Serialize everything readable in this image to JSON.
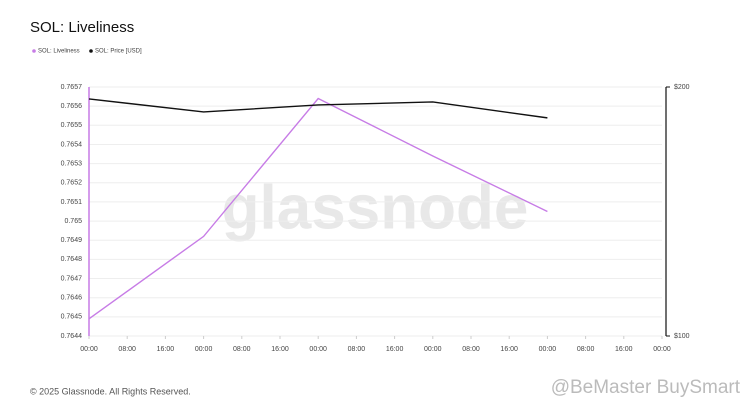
{
  "chart_data": {
    "type": "line",
    "title": "SOL: Liveliness",
    "watermark": "glassnode",
    "footer": "© 2025 Glassnode. All Rights Reserved.",
    "overlay_watermark": "@BeMaster BuySmart",
    "x": [
      0,
      24,
      48,
      72,
      96
    ],
    "xlim": [
      0,
      120
    ],
    "xticks": [
      {
        "value": 0,
        "label": "00:00"
      },
      {
        "value": 8,
        "label": "08:00"
      },
      {
        "value": 16,
        "label": "16:00"
      },
      {
        "value": 24,
        "label": "00:00"
      },
      {
        "value": 32,
        "label": "08:00"
      },
      {
        "value": 40,
        "label": "16:00"
      },
      {
        "value": 48,
        "label": "00:00"
      },
      {
        "value": 56,
        "label": "08:00"
      },
      {
        "value": 64,
        "label": "16:00"
      },
      {
        "value": 72,
        "label": "00:00"
      },
      {
        "value": 80,
        "label": "08:00"
      },
      {
        "value": 88,
        "label": "16:00"
      },
      {
        "value": 96,
        "label": "00:00"
      },
      {
        "value": 104,
        "label": "08:00"
      },
      {
        "value": 112,
        "label": "16:00"
      },
      {
        "value": 120,
        "label": "00:00"
      }
    ],
    "ylim": [
      0.7644,
      0.7657
    ],
    "yticks": [
      0.7644,
      0.7645,
      0.7646,
      0.7647,
      0.7648,
      0.7649,
      0.765,
      0.7651,
      0.7652,
      0.7653,
      0.7654,
      0.7655,
      0.7656,
      0.7657
    ],
    "y2lim": [
      100,
      200
    ],
    "y2ticks": [
      {
        "value": 100,
        "label": "$100"
      },
      {
        "value": 200,
        "label": "$200"
      }
    ],
    "grid": true,
    "series": [
      {
        "name": "SOL: Liveliness",
        "color": "#c77ce6",
        "values": [
          0.76449,
          0.76492,
          0.76564,
          0.76534,
          0.76505
        ]
      },
      {
        "name": "SOL: Price [USD]",
        "color": "#111111",
        "axis": "y2",
        "values": [
          195.2,
          190.0,
          192.8,
          194.0,
          187.6
        ]
      }
    ]
  }
}
